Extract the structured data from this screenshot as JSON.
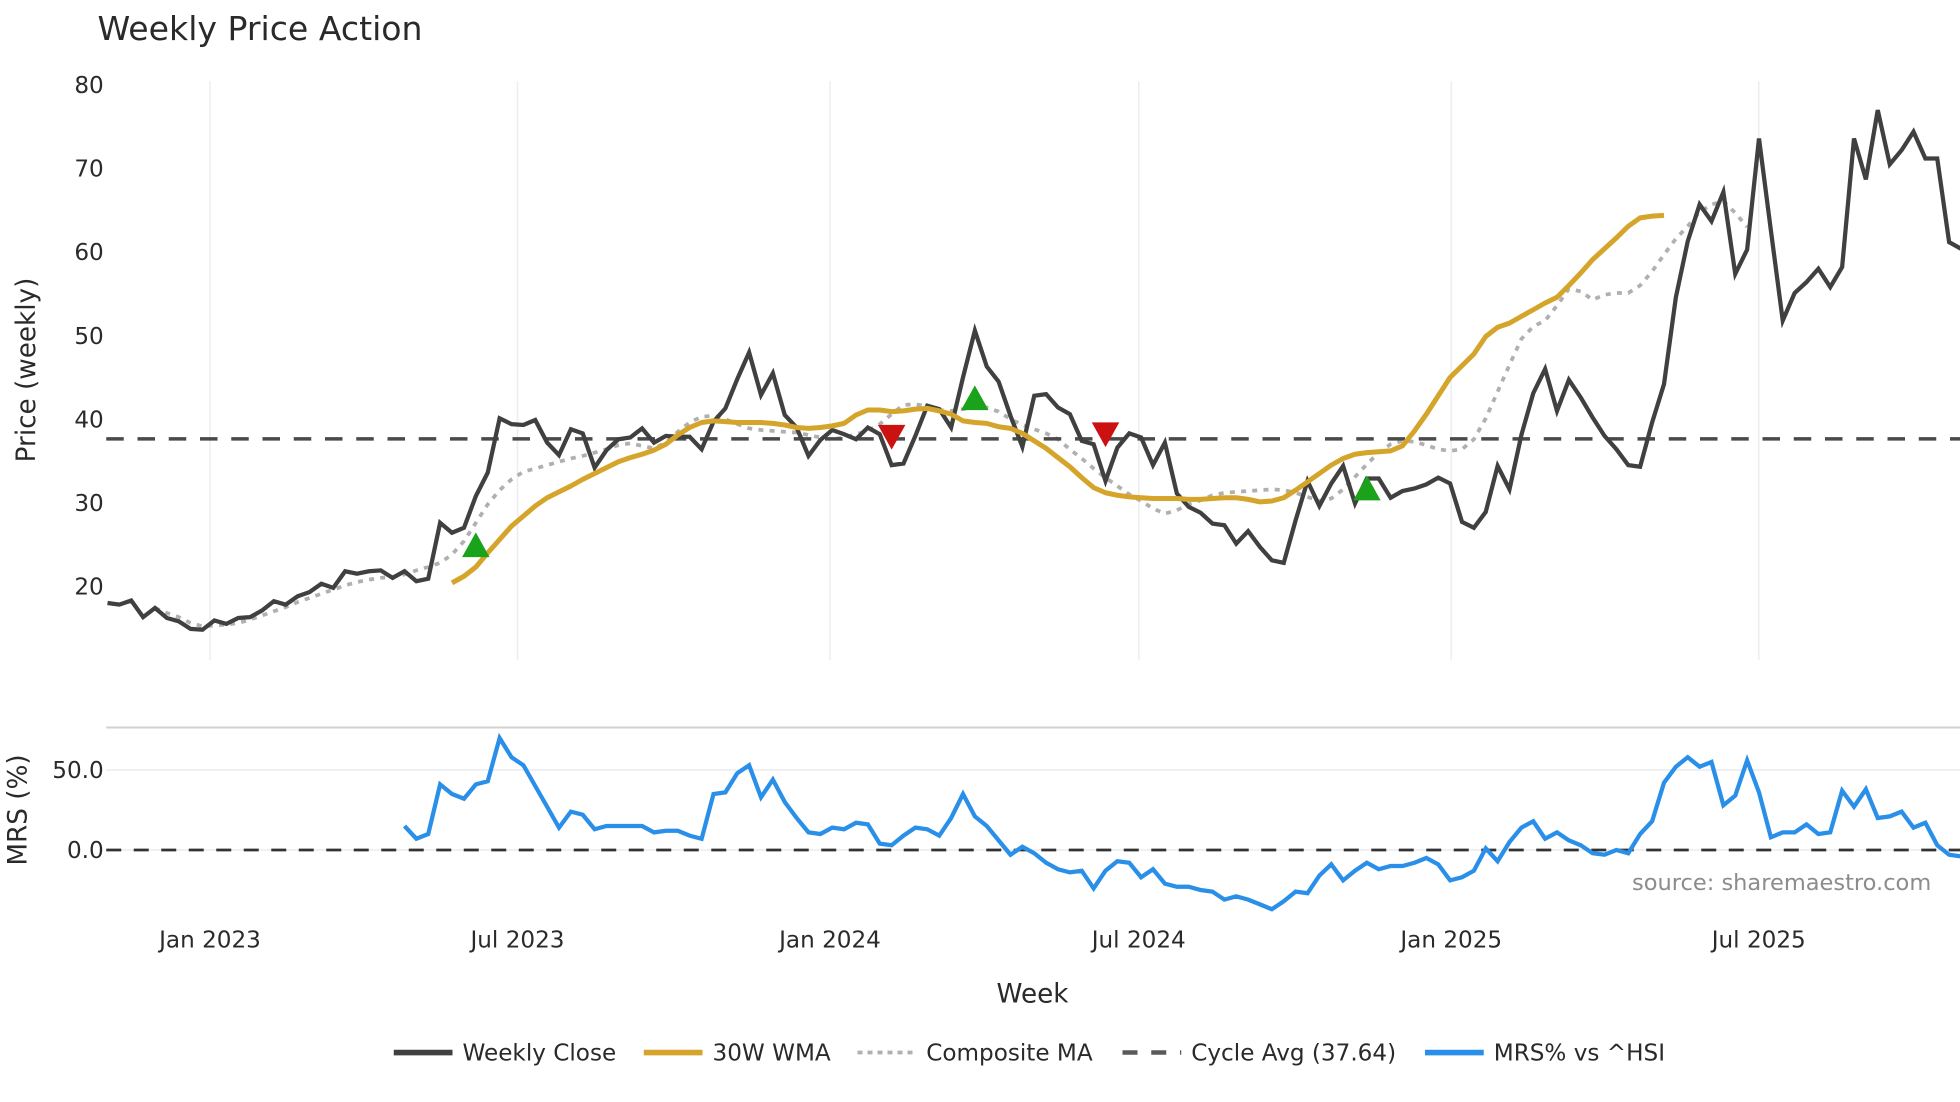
{
  "chart_data": [
    {
      "type": "line",
      "title": "Weekly Price Action",
      "xlabel": "Week",
      "ylabel": "Price (weekly)",
      "ylim": [
        11,
        81
      ],
      "yticks": [
        20,
        30,
        40,
        50,
        60,
        70,
        80
      ],
      "xticks": [
        "Jan 2023",
        "Jul 2023",
        "Jan 2024",
        "Jul 2024",
        "Jan 2025",
        "Jul 2025"
      ],
      "grid": "vertical",
      "x_start_week_offset": -8.8,
      "series": [
        {
          "name": "Weekly Close",
          "color": "#404040",
          "style": "solid",
          "values": [
            18.0,
            17.8,
            18.3,
            16.3,
            17.4,
            16.2,
            15.8,
            14.9,
            14.8,
            15.9,
            15.5,
            16.2,
            16.3,
            17.1,
            18.2,
            17.8,
            18.8,
            19.3,
            20.3,
            19.8,
            21.8,
            21.5,
            21.8,
            21.9,
            21.0,
            21.8,
            20.6,
            20.9,
            27.6,
            26.4,
            27.0,
            30.8,
            33.6,
            40.1,
            39.4,
            39.3,
            39.9,
            37.2,
            35.7,
            38.8,
            38.3,
            34.2,
            36.3,
            37.6,
            37.8,
            38.9,
            37.2,
            38.0,
            37.9,
            37.9,
            36.4,
            39.7,
            41.3,
            44.8,
            48.0,
            42.9,
            45.5,
            40.5,
            39.0,
            35.6,
            37.5,
            38.7,
            38.2,
            37.6,
            39.0,
            38.2,
            34.5,
            34.7,
            38.0,
            41.6,
            41.2,
            39.0,
            45.0,
            50.6,
            46.3,
            44.5,
            40.4,
            36.7,
            42.8,
            43.0,
            41.4,
            40.6,
            37.4,
            37.0,
            32.6,
            36.6,
            38.3,
            37.8,
            34.5,
            37.2,
            31.1,
            29.5,
            28.8,
            27.5,
            27.3,
            25.1,
            26.6,
            24.7,
            23.1,
            22.8,
            27.9,
            32.6,
            29.6,
            32.3,
            34.4,
            29.9,
            32.9,
            32.9,
            30.6,
            31.4,
            31.7,
            32.2,
            33.0,
            32.3,
            27.7,
            27.0,
            28.9,
            34.4,
            31.6,
            38.1,
            43.1,
            46.0,
            41.0,
            44.7,
            42.6,
            40.2,
            38.0,
            36.4,
            34.5,
            34.3,
            39.6,
            44.2,
            54.6,
            61.3,
            65.7,
            63.7,
            67.2,
            57.4,
            60.3,
            73.6,
            62.6,
            51.8,
            55.1,
            56.4,
            58.0,
            55.8,
            58.2,
            73.6,
            68.7,
            77.0,
            70.5,
            72.2,
            74.4,
            71.2,
            71.2,
            61.2,
            60.4,
            60.0
          ]
        },
        {
          "name": "30W WMA",
          "color": "#D4A52A",
          "style": "solid",
          "start_index": 29,
          "values": [
            20.4,
            21.2,
            22.3,
            24.0,
            25.6,
            27.2,
            28.4,
            29.6,
            30.6,
            31.3,
            32.0,
            32.8,
            33.5,
            34.2,
            34.9,
            35.4,
            35.8,
            36.3,
            37.0,
            38.1,
            39.0,
            39.6,
            39.8,
            39.7,
            39.6,
            39.6,
            39.6,
            39.5,
            39.3,
            39.0,
            38.9,
            39.0,
            39.2,
            39.5,
            40.5,
            41.1,
            41.1,
            40.9,
            41.0,
            41.2,
            41.3,
            41.0,
            40.6,
            39.8,
            39.6,
            39.5,
            39.1,
            38.9,
            38.3,
            37.4,
            36.5,
            35.4,
            34.3,
            33.0,
            31.8,
            31.2,
            30.9,
            30.7,
            30.6,
            30.5,
            30.5,
            30.5,
            30.4,
            30.4,
            30.5,
            30.6,
            30.6,
            30.4,
            30.1,
            30.2,
            30.6,
            31.5,
            32.5,
            33.5,
            34.5,
            35.3,
            35.8,
            36.0,
            36.1,
            36.2,
            36.8,
            38.6,
            40.6,
            42.8,
            45.0,
            46.4,
            47.8,
            49.9,
            51.0,
            51.5,
            52.3,
            53.1,
            53.9,
            54.6,
            56.0,
            57.5,
            59.1,
            60.4,
            61.7,
            63.1,
            64.1,
            64.3,
            64.4
          ]
        },
        {
          "name": "Composite MA",
          "color": "#B0B0B0",
          "style": "dotted",
          "start_index": 4,
          "values": [
            17.4,
            16.8,
            16.3,
            15.6,
            15.2,
            15.3,
            15.4,
            15.6,
            16.0,
            16.5,
            17.0,
            17.5,
            18.1,
            18.6,
            19.1,
            19.6,
            20.1,
            20.5,
            20.8,
            21.0,
            21.1,
            21.4,
            21.9,
            22.3,
            22.8,
            23.8,
            25.4,
            27.6,
            29.8,
            31.5,
            32.8,
            33.7,
            34.1,
            34.5,
            34.9,
            35.3,
            35.6,
            36.0,
            36.4,
            36.9,
            37.1,
            36.8,
            36.5,
            37.2,
            38.5,
            39.6,
            40.3,
            40.4,
            40.0,
            39.4,
            38.9,
            38.7,
            38.6,
            38.5,
            38.4,
            38.1,
            37.8,
            37.6,
            37.8,
            38.2,
            38.6,
            39.4,
            40.6,
            41.7,
            41.8,
            41.5,
            41.1,
            41.0,
            41.2,
            41.4,
            41.4,
            40.9,
            40.0,
            39.3,
            38.8,
            38.3,
            37.6,
            36.4,
            35.3,
            34.1,
            33.0,
            32.0,
            31.0,
            30.2,
            29.3,
            28.7,
            29.1,
            29.8,
            30.3,
            30.9,
            31.2,
            31.3,
            31.4,
            31.5,
            31.6,
            31.5,
            31.2,
            30.7,
            30.2,
            30.5,
            31.6,
            33.1,
            34.6,
            36.0,
            37.0,
            37.4,
            37.3,
            36.9,
            36.4,
            36.2,
            36.4,
            37.6,
            40.1,
            43.3,
            46.5,
            49.6,
            51.1,
            51.8,
            53.6,
            55.6,
            55.3,
            54.3,
            54.9,
            55.1,
            55.1,
            56.0,
            57.7,
            59.7,
            61.6,
            63.1,
            64.8,
            65.7,
            66.1,
            64.7,
            63.0
          ]
        },
        {
          "name": "Cycle Avg (37.64)",
          "color": "#4a4a4a",
          "style": "dashed",
          "constant": 37.64
        }
      ],
      "markers": [
        {
          "type": "buy",
          "shape": "triangle-up",
          "color": "#1AA31A",
          "week_index": 31,
          "price": 24.8
        },
        {
          "type": "sell",
          "shape": "triangle-down",
          "color": "#CC1111",
          "week_index": 66,
          "price": 38.0
        },
        {
          "type": "buy",
          "shape": "triangle-up",
          "color": "#1AA31A",
          "week_index": 73,
          "price": 42.4
        },
        {
          "type": "sell",
          "shape": "triangle-down",
          "color": "#CC1111",
          "week_index": 84,
          "price": 38.3
        },
        {
          "type": "buy",
          "shape": "triangle-up",
          "color": "#1AA31A",
          "week_index": 106,
          "price": 31.6
        }
      ],
      "annotation": "source: sharemaestro.com"
    },
    {
      "type": "line",
      "title": "",
      "xlabel": "Week",
      "ylabel": "MRS (%)",
      "ylim": [
        -40,
        78
      ],
      "yticks": [
        "0.0",
        "50.0"
      ],
      "series": [
        {
          "name": "MRS% vs ^HSI",
          "color": "#2A8FE8",
          "style": "solid",
          "start_index": 25,
          "values": [
            15,
            7,
            10,
            41,
            35,
            32,
            41,
            43,
            70,
            58,
            53,
            40,
            27,
            14,
            24,
            22,
            13,
            15,
            15,
            15,
            15,
            11,
            12,
            12,
            9,
            7,
            35,
            36,
            48,
            53,
            33,
            44,
            30,
            20,
            11,
            10,
            14,
            13,
            17,
            16,
            4,
            3,
            9,
            14,
            13,
            9,
            20,
            35,
            21,
            15,
            6,
            -3,
            2,
            -2,
            -8,
            -12,
            -14,
            -13,
            -24,
            -13,
            -7,
            -8,
            -17,
            -12,
            -21,
            -23,
            -23,
            -25,
            -26,
            -31,
            -29,
            -31,
            -34,
            -37,
            -32,
            -26,
            -27,
            -16,
            -9,
            -19,
            -13,
            -8,
            -12,
            -10,
            -10,
            -8,
            -5,
            -9,
            -19,
            -17,
            -13,
            1,
            -7,
            5,
            14,
            18,
            7,
            11,
            6,
            3,
            -2,
            -3,
            0,
            -2,
            10,
            18,
            42,
            52,
            58,
            52,
            55,
            28,
            34,
            56,
            36,
            8,
            11,
            11,
            16,
            10,
            11,
            37,
            27,
            38,
            20,
            21,
            24,
            14,
            17,
            3,
            -3,
            -4
          ]
        },
        {
          "name": "Zero line",
          "color": "#333333",
          "style": "dashed",
          "constant": 0
        }
      ]
    }
  ],
  "legend": [
    {
      "label": "Weekly Close",
      "color": "#404040",
      "style": "solid"
    },
    {
      "label": "30W WMA",
      "color": "#D4A52A",
      "style": "solid"
    },
    {
      "label": "Composite MA",
      "color": "#B0B0B0",
      "style": "dotted"
    },
    {
      "label": "Cycle Avg (37.64)",
      "color": "#5a5a5a",
      "style": "dashed"
    },
    {
      "label": "MRS% vs ^HSI",
      "color": "#2A8FE8",
      "style": "solid"
    }
  ],
  "labels": {
    "title": "Weekly Price Action",
    "price_ylabel": "Price (weekly)",
    "mrs_ylabel": "MRS (%)",
    "xlabel": "Week",
    "source": "source: sharemaestro.com"
  }
}
